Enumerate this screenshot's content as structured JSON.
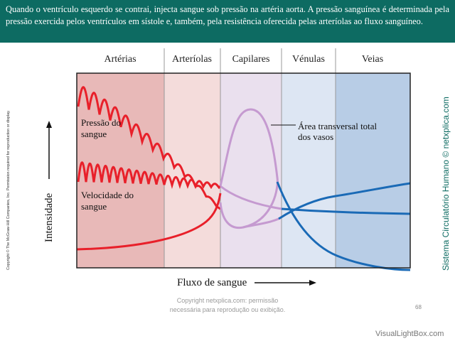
{
  "header": {
    "text": "Quando o ventrículo esquerdo se contrai, injecta sangue sob pressão na artéria aorta. A pressão sanguínea é determinada pela pressão exercida pelos ventrículos em sístole e, também, pela resistência oferecida pelas arteríolas ao fluxo sanguíneo."
  },
  "sections": [
    {
      "label": "Artérias",
      "color": "#e8b9b8"
    },
    {
      "label": "Arteríolas",
      "color": "#f4dcdb"
    },
    {
      "label": "Capilares",
      "color": "#eae0ee"
    },
    {
      "label": "Vénulas",
      "color": "#dde6f3"
    },
    {
      "label": "Veias",
      "color": "#b8cde6"
    }
  ],
  "labels": {
    "pressure": [
      "Pressão do",
      "sangue"
    ],
    "velocity": [
      "Velocidade do",
      "sangue"
    ],
    "area": [
      "Área transversal total",
      "dos vasos"
    ],
    "y_axis": "Intensidade",
    "x_axis": "Fluxo de sangue"
  },
  "colors": {
    "header": "#0d6b62",
    "red": "#e8202a",
    "purple": "#c59ad0",
    "blue": "#1a6ab6"
  },
  "copyright_side": "Copyright © The McGraw-Hill Companies, Inc. Permission required for reproduction or display.",
  "brand_side": "Sistema Circulatório Humano © netxplica.com",
  "footer": {
    "line1": "Copyright netxplica.com: permissão",
    "line2": "necessária para reprodução ou exibição."
  },
  "page_number": "68",
  "watermark": "VisualLightBox.com"
}
